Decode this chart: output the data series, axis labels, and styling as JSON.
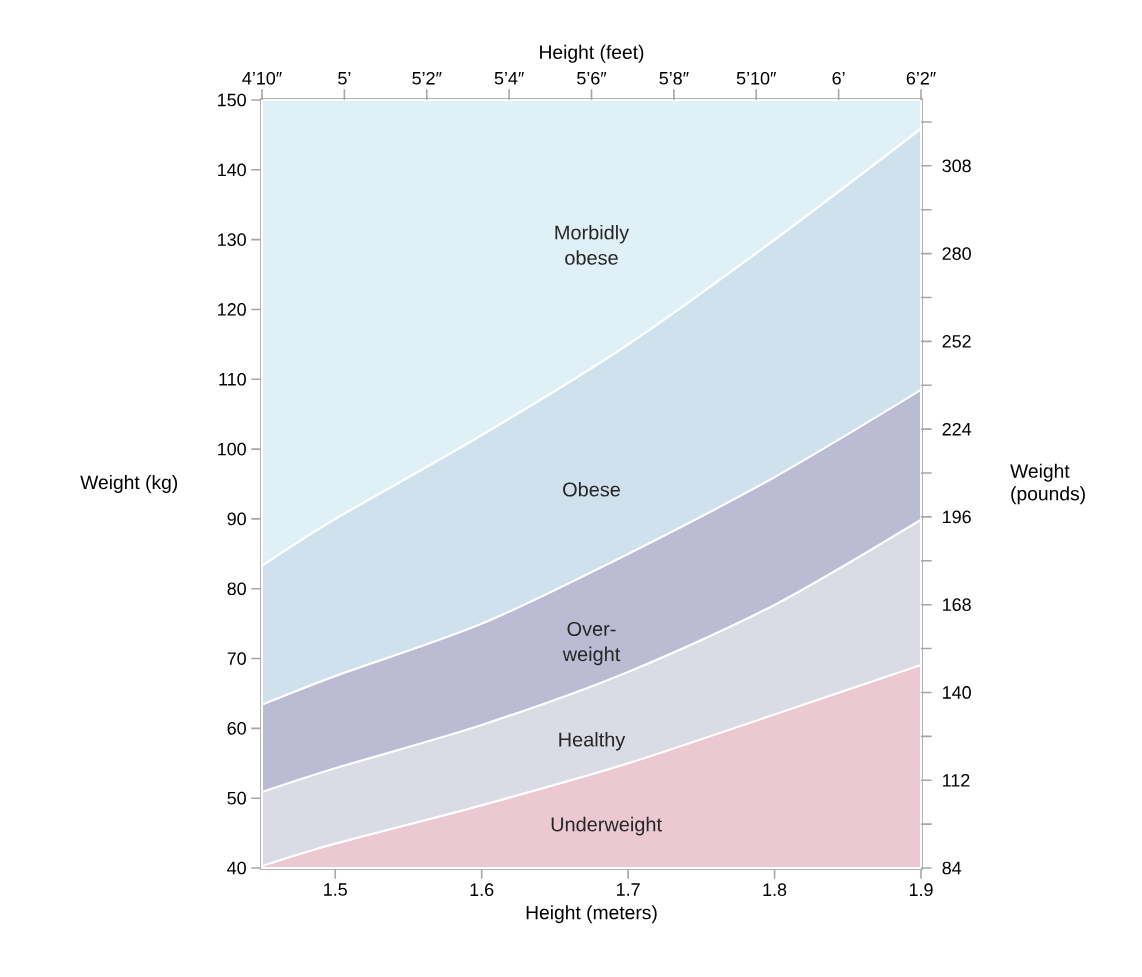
{
  "chart_data": {
    "type": "area",
    "xlabel": "Height (meters)",
    "ylabel": "Weight (kg)",
    "x2label": "Height (feet)",
    "y2label": "Weight (pounds)",
    "x": [
      1.45,
      1.5,
      1.6,
      1.7,
      1.8,
      1.9
    ],
    "series": [
      {
        "name": "Underweight",
        "color": "#ebc8d2",
        "values": [
          40.3,
          43.5,
          49,
          55,
          62,
          69.1
        ]
      },
      {
        "name": "Healthy",
        "color": "#dbdbe5",
        "values": [
          50.9,
          54.3,
          60.5,
          68.1,
          77.7,
          89.9
        ]
      },
      {
        "name": "Over-weight",
        "color": "#bcbbd4",
        "values": [
          63.4,
          67.5,
          75,
          85,
          96,
          108.5
        ]
      },
      {
        "name": "Obese",
        "color": "#cfe1ed",
        "values": [
          83.3,
          90,
          102,
          115,
          130,
          145.9
        ]
      },
      {
        "name": "Morbidly obese",
        "color": "#dff1f6",
        "values": [
          150,
          150,
          150,
          150,
          150,
          150
        ]
      }
    ],
    "xlim": [
      1.45,
      1.9
    ],
    "xticks": [
      1.5,
      1.6,
      1.7,
      1.8,
      1.9
    ],
    "ylim": [
      40,
      150
    ],
    "yticks": [
      40,
      50,
      60,
      70,
      80,
      90,
      100,
      110,
      120,
      130,
      140,
      150
    ],
    "x2lim": [
      4.8333,
      6.1667
    ],
    "x2ticks": [
      {
        "value": 4.8333,
        "label": "4’10″"
      },
      {
        "value": 5,
        "label": "5’"
      },
      {
        "value": 5.1667,
        "label": "5’2″"
      },
      {
        "value": 5.3333,
        "label": "5’4″"
      },
      {
        "value": 5.5,
        "label": "5’6″"
      },
      {
        "value": 5.6667,
        "label": "5’8″"
      },
      {
        "value": 5.8333,
        "label": "5’10″"
      },
      {
        "value": 6,
        "label": "6’"
      },
      {
        "value": 6.1667,
        "label": "6’2″"
      }
    ],
    "y2lim": [
      84,
      329
    ],
    "y2ticks": [
      84,
      {
        "value": 98,
        "label": null
      },
      112,
      {
        "value": 126,
        "label": null
      },
      140,
      {
        "value": 154,
        "label": null
      },
      168,
      {
        "value": 182,
        "label": null
      },
      196,
      {
        "value": 210,
        "label": null
      },
      224,
      {
        "value": 238,
        "label": null
      },
      252,
      {
        "value": 266,
        "label": null
      },
      280,
      {
        "value": 294,
        "label": null
      },
      308,
      {
        "value": 322,
        "label": null
      }
    ]
  }
}
